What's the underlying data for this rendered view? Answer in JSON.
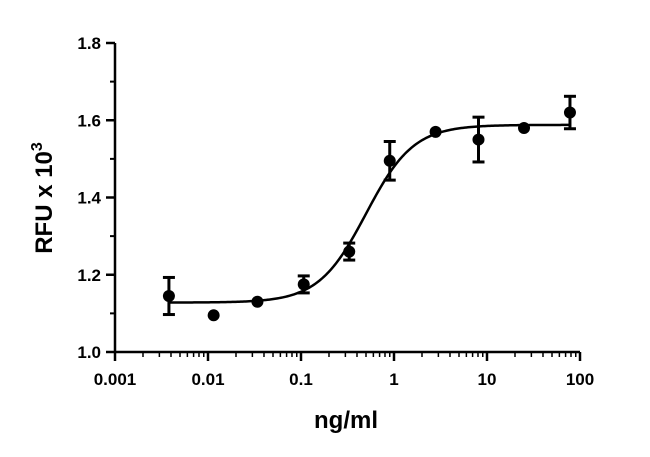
{
  "chart_data": {
    "type": "scatter",
    "xscale": "log",
    "xlabel": "ng/ml",
    "ylabel": {
      "base": "RFU x 10",
      "exponent": "3"
    },
    "xlim": [
      0.001,
      100
    ],
    "ylim": [
      1.0,
      1.8
    ],
    "xticks": [
      "0.001",
      "0.01",
      "0.1",
      "1",
      "10",
      "100"
    ],
    "yticks": [
      "1.0",
      "1.2",
      "1.4",
      "1.6",
      "1.8"
    ],
    "grid": false,
    "legend": "none",
    "series": [
      {
        "points": [
          {
            "x": 0.0038,
            "y": 1.145,
            "err": 0.048
          },
          {
            "x": 0.0115,
            "y": 1.095,
            "err": 0
          },
          {
            "x": 0.034,
            "y": 1.13,
            "err": 0
          },
          {
            "x": 0.107,
            "y": 1.175,
            "err": 0.022
          },
          {
            "x": 0.33,
            "y": 1.26,
            "err": 0.022
          },
          {
            "x": 0.9,
            "y": 1.495,
            "err": 0.05
          },
          {
            "x": 2.8,
            "y": 1.57,
            "err": 0
          },
          {
            "x": 8.1,
            "y": 1.55,
            "err": 0.058
          },
          {
            "x": 25,
            "y": 1.58,
            "err": 0
          },
          {
            "x": 78,
            "y": 1.62,
            "err": 0.042
          }
        ],
        "fit": {
          "model": "four-parameter logistic",
          "bottom": 1.128,
          "top": 1.588,
          "ec50": 0.5,
          "hill": 1.7
        },
        "color": "#000000"
      }
    ]
  }
}
